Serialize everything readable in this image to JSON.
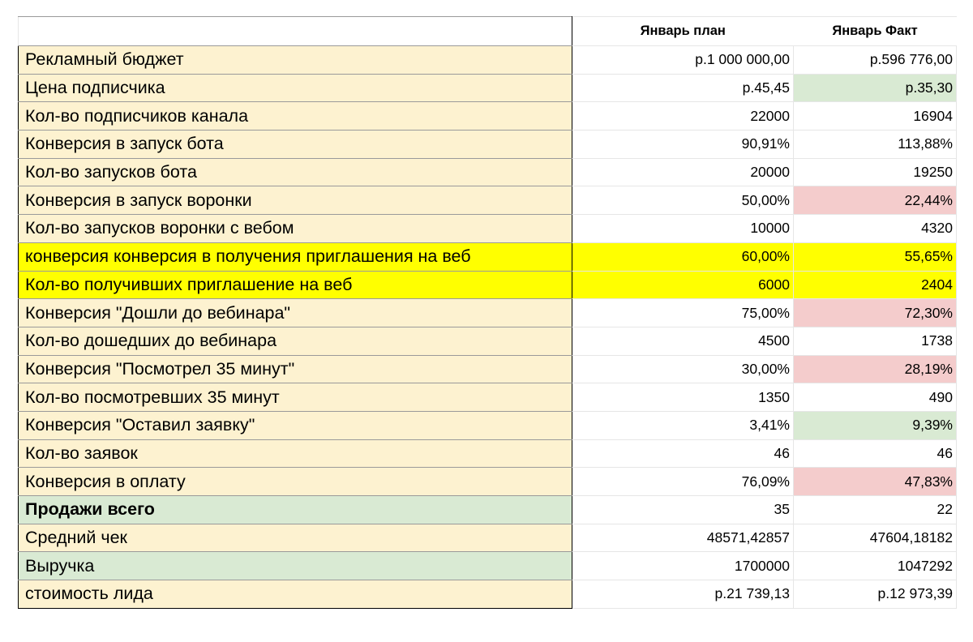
{
  "colors": {
    "cream": "#fdf2d0",
    "light_green": "#d9ead3",
    "yellow": "#ffff00",
    "light_red": "#f4cccc",
    "white": "#ffffff"
  },
  "header": {
    "col_label": "",
    "col_plan": "Январь план",
    "col_fact": "Январь Факт"
  },
  "rows": [
    {
      "label": "Рекламный бюджет",
      "plan": "р.1 000 000,00",
      "fact": "р.596 776,00",
      "label_bg": "cream",
      "plan_bg": "white",
      "fact_bg": "white",
      "bold": false
    },
    {
      "label": "Цена подписчика",
      "plan": "р.45,45",
      "fact": "р.35,30",
      "label_bg": "cream",
      "plan_bg": "white",
      "fact_bg": "light_green",
      "bold": false
    },
    {
      "label": "Кол-во подписчиков канала",
      "plan": "22000",
      "fact": "16904",
      "label_bg": "cream",
      "plan_bg": "white",
      "fact_bg": "white",
      "bold": false
    },
    {
      "label": "Конверсия в запуск бота",
      "plan": "90,91%",
      "fact": "113,88%",
      "label_bg": "cream",
      "plan_bg": "white",
      "fact_bg": "white",
      "bold": false
    },
    {
      "label": "Кол-во запусков бота",
      "plan": "20000",
      "fact": "19250",
      "label_bg": "cream",
      "plan_bg": "white",
      "fact_bg": "white",
      "bold": false
    },
    {
      "label": "Конверсия в запуск воронки",
      "plan": "50,00%",
      "fact": "22,44%",
      "label_bg": "cream",
      "plan_bg": "white",
      "fact_bg": "light_red",
      "bold": false
    },
    {
      "label": "Кол-во запусков воронки с вебом",
      "plan": "10000",
      "fact": "4320",
      "label_bg": "cream",
      "plan_bg": "white",
      "fact_bg": "white",
      "bold": false
    },
    {
      "label": "конверсия конверсия в получения приглашения на веб",
      "plan": "60,00%",
      "fact": "55,65%",
      "label_bg": "yellow",
      "plan_bg": "yellow",
      "fact_bg": "yellow",
      "bold": false
    },
    {
      "label": "Кол-во получивших приглашение на веб",
      "plan": "6000",
      "fact": "2404",
      "label_bg": "yellow",
      "plan_bg": "yellow",
      "fact_bg": "yellow",
      "bold": false
    },
    {
      "label": "Конверсия \"Дошли до вебинара\"",
      "plan": "75,00%",
      "fact": "72,30%",
      "label_bg": "cream",
      "plan_bg": "white",
      "fact_bg": "light_red",
      "bold": false
    },
    {
      "label": "Кол-во дошедших до вебинара",
      "plan": "4500",
      "fact": "1738",
      "label_bg": "cream",
      "plan_bg": "white",
      "fact_bg": "white",
      "bold": false
    },
    {
      "label": "Конверсия \"Посмотрел 35 минут\"",
      "plan": "30,00%",
      "fact": "28,19%",
      "label_bg": "cream",
      "plan_bg": "white",
      "fact_bg": "light_red",
      "bold": false
    },
    {
      "label": "Кол-во посмотревших 35 минут",
      "plan": "1350",
      "fact": "490",
      "label_bg": "cream",
      "plan_bg": "white",
      "fact_bg": "white",
      "bold": false
    },
    {
      "label": "Конверсия \"Оставил заявку\"",
      "plan": "3,41%",
      "fact": "9,39%",
      "label_bg": "cream",
      "plan_bg": "white",
      "fact_bg": "light_green",
      "bold": false
    },
    {
      "label": "Кол-во заявок",
      "plan": "46",
      "fact": "46",
      "label_bg": "cream",
      "plan_bg": "white",
      "fact_bg": "white",
      "bold": false
    },
    {
      "label": "Конверсия в оплату",
      "plan": "76,09%",
      "fact": "47,83%",
      "label_bg": "cream",
      "plan_bg": "white",
      "fact_bg": "light_red",
      "bold": false
    },
    {
      "label": "Продажи всего",
      "plan": "35",
      "fact": "22",
      "label_bg": "light_green",
      "plan_bg": "white",
      "fact_bg": "white",
      "bold": true
    },
    {
      "label": "Средний чек",
      "plan": "48571,42857",
      "fact": "47604,18182",
      "label_bg": "cream",
      "plan_bg": "white",
      "fact_bg": "white",
      "bold": false
    },
    {
      "label": "Выручка",
      "plan": "1700000",
      "fact": "1047292",
      "label_bg": "light_green",
      "plan_bg": "white",
      "fact_bg": "white",
      "bold": false
    },
    {
      "label": "стоимость лида",
      "plan": "р.21 739,13",
      "fact": "р.12 973,39",
      "label_bg": "cream",
      "plan_bg": "white",
      "fact_bg": "white",
      "bold": false
    }
  ]
}
